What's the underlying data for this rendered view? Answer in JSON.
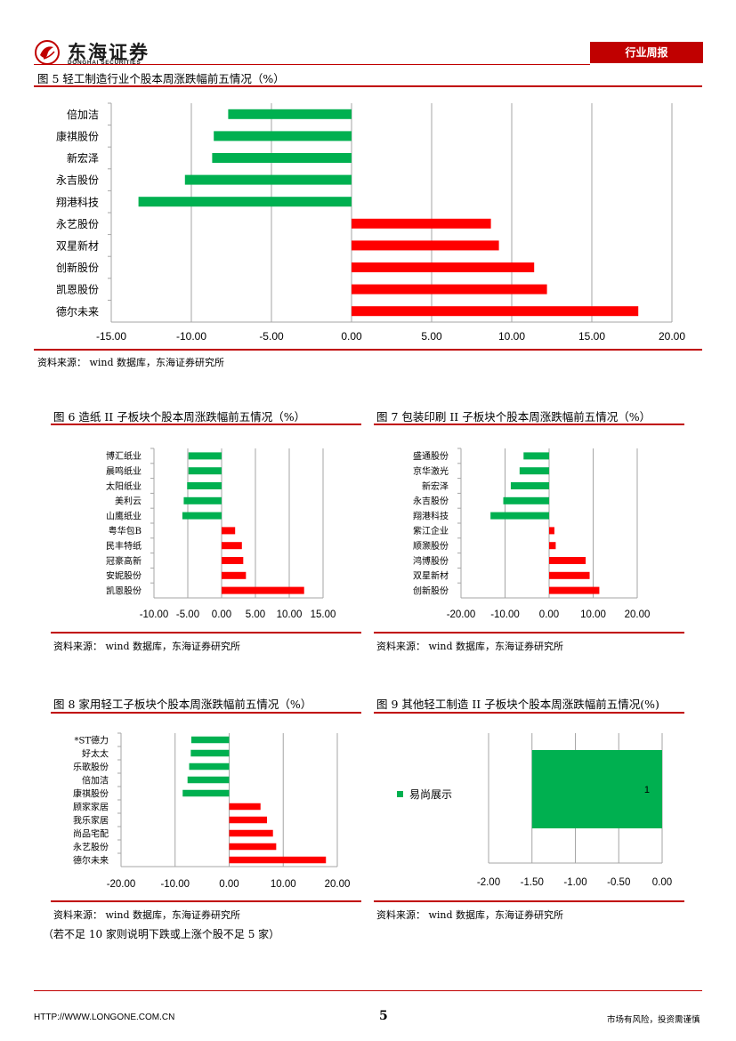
{
  "header": {
    "company_cn": "东海证券",
    "company_en": "DONGHAI SECURITIES",
    "badge": "行业周报"
  },
  "charts": [
    {
      "title": "图 5   轻工制造行业个股本周涨跌幅前五情况（%）",
      "source": "资料来源：  wind 数据库，东海证券研究所"
    },
    {
      "title": "图 6   造纸 II 子板块个股本周涨跌幅前五情况（%）",
      "source": "资料来源：  wind 数据库，东海证券研究所"
    },
    {
      "title": "图 7   包装印刷 II 子板块个股本周涨跌幅前五情况（%）",
      "source": "资料来源：  wind 数据库，东海证券研究所"
    },
    {
      "title": "图 8 家用轻工子板块个股本周涨跌幅前五情况（%）",
      "source": "资料来源：  wind 数据库，东海证券研究所"
    },
    {
      "title": "图 9 其他轻工制造 II 子板块个股本周涨跌幅前五情况(%)",
      "source": "资料来源：  wind 数据库，东海证券研究所"
    }
  ],
  "note": "（若不足 10 家则说明下跌或上涨个股不足 5 家）",
  "footer": {
    "url": "HTTP://WWW.LONGONE.COM.CN",
    "page": "5",
    "disclaimer": "市场有风险，投资需谨慎"
  },
  "colors": {
    "negative": "#00b050",
    "positive": "#ff0000",
    "brand": "#c00000"
  },
  "chart_data": [
    {
      "type": "bar",
      "orientation": "horizontal",
      "categories": [
        "倍加洁",
        "康祺股份",
        "新宏泽",
        "永吉股份",
        "翔港科技",
        "永艺股份",
        "双星新材",
        "创新股份",
        "凯恩股份",
        "德尔未来"
      ],
      "values": [
        -7.7,
        -8.6,
        -8.7,
        -10.4,
        -13.3,
        8.7,
        9.2,
        11.4,
        12.2,
        17.9
      ],
      "xlim": [
        -15,
        20
      ],
      "xticks": [
        "-15.00",
        "-10.00",
        "-5.00",
        "0.00",
        "5.00",
        "10.00",
        "15.00",
        "20.00"
      ],
      "grid": true,
      "legend": "none"
    },
    {
      "type": "bar",
      "orientation": "horizontal",
      "categories": [
        "博汇纸业",
        "晨鸣纸业",
        "太阳纸业",
        "美利云",
        "山鹰纸业",
        "粤华包B",
        "民丰特纸",
        "冠豪高新",
        "安妮股份",
        "凯恩股份"
      ],
      "values": [
        -4.9,
        -4.9,
        -5.1,
        -5.6,
        -5.8,
        2.0,
        3.0,
        3.2,
        3.6,
        12.2
      ],
      "xlim": [
        -10,
        15
      ],
      "xticks": [
        "-10.00",
        "-5.00",
        "0.00",
        "5.00",
        "10.00",
        "15.00"
      ],
      "grid": true,
      "legend": "none"
    },
    {
      "type": "bar",
      "orientation": "horizontal",
      "categories": [
        "盛通股份",
        "京华激光",
        "新宏泽",
        "永吉股份",
        "翔港科技",
        "紫江企业",
        "顺灏股份",
        "鸿博股份",
        "双星新材",
        "创新股份"
      ],
      "values": [
        -5.8,
        -6.7,
        -8.7,
        -10.4,
        -13.3,
        1.2,
        1.5,
        8.3,
        9.2,
        11.4
      ],
      "xlim": [
        -20,
        20
      ],
      "xticks": [
        "-20.00",
        "-10.00",
        "0.00",
        "10.00",
        "20.00"
      ],
      "grid": true,
      "legend": "none"
    },
    {
      "type": "bar",
      "orientation": "horizontal",
      "categories": [
        "*ST德力",
        "好太太",
        "乐歌股份",
        "倍加洁",
        "康祺股份",
        "顾家家居",
        "我乐家居",
        "尚品宅配",
        "永艺股份",
        "德尔未来"
      ],
      "values": [
        -7.0,
        -7.1,
        -7.4,
        -7.7,
        -8.6,
        5.8,
        7.0,
        8.1,
        8.7,
        17.9
      ],
      "xlim": [
        -20,
        20
      ],
      "xticks": [
        "-20.00",
        "-10.00",
        "0.00",
        "10.00",
        "20.00"
      ],
      "grid": true,
      "legend": "none"
    },
    {
      "type": "bar",
      "orientation": "horizontal",
      "series": [
        {
          "name": "易尚展示",
          "values": [
            -1.5
          ]
        }
      ],
      "categories": [
        "1"
      ],
      "xlim": [
        -2,
        0
      ],
      "xticks": [
        "-2.00",
        "-1.50",
        "-1.00",
        "-0.50",
        "0.00"
      ],
      "grid": true,
      "legend": "left"
    }
  ]
}
